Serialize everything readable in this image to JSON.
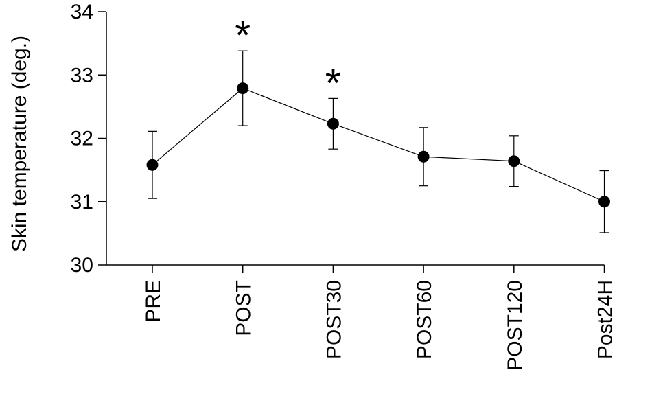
{
  "chart_data": {
    "type": "line",
    "title": "",
    "xlabel": "",
    "ylabel": "Skin temperature (deg.)",
    "categories": [
      "PRE",
      "POST",
      "POST30",
      "POST60",
      "POST120",
      "Post24H"
    ],
    "values": [
      31.58,
      32.79,
      32.23,
      31.71,
      31.64,
      31.0
    ],
    "error": [
      0.53,
      0.59,
      0.4,
      0.46,
      0.4,
      0.49
    ],
    "annotations": [
      "",
      "*",
      "*",
      "",
      "",
      ""
    ],
    "ylim": [
      30,
      34
    ],
    "yticks": [
      30,
      31,
      32,
      33,
      34
    ],
    "grid": false,
    "legend": "none",
    "colors": {
      "line": "#000000",
      "marker": "#000000",
      "axis": "#000000"
    }
  }
}
